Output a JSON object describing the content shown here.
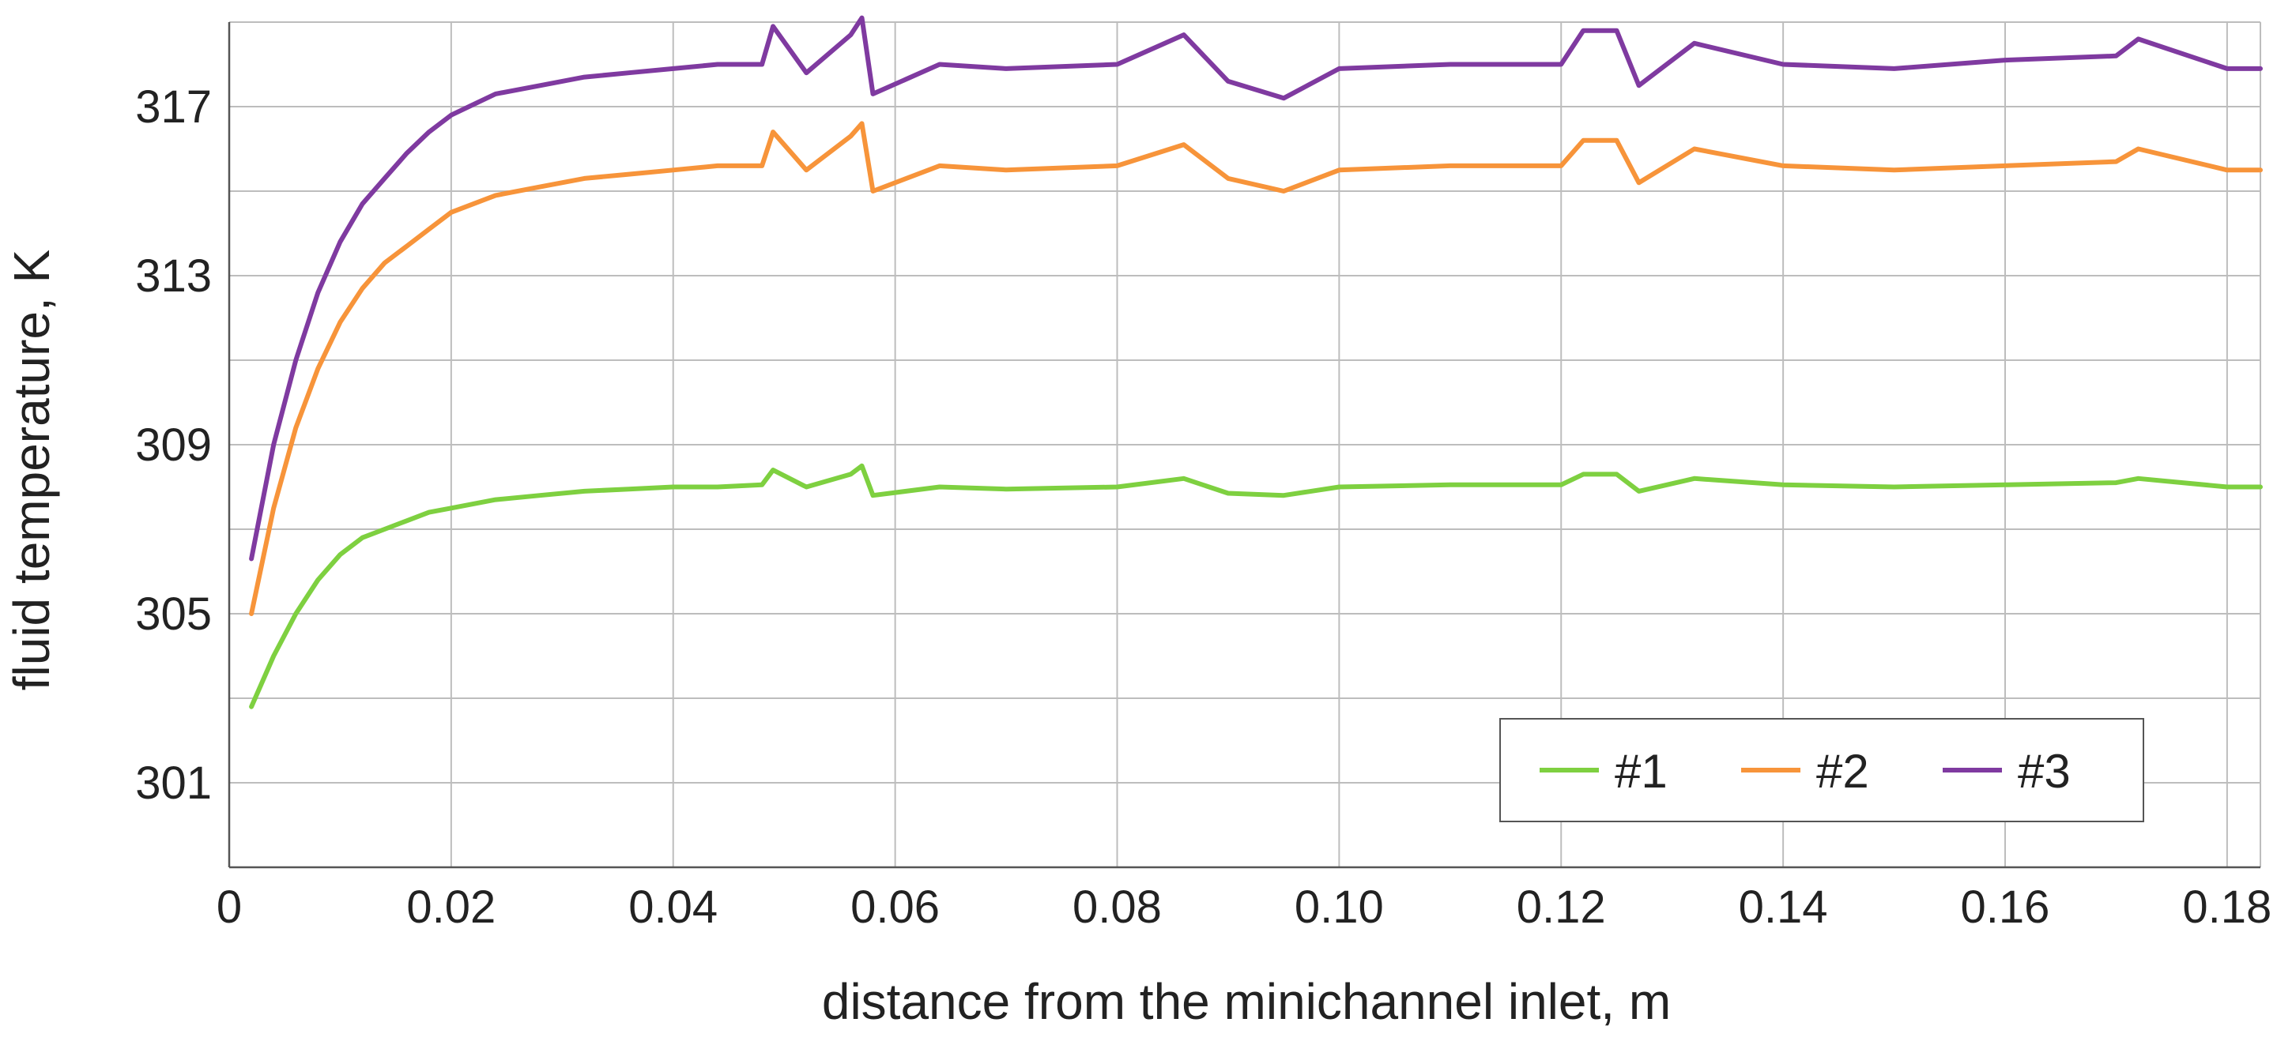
{
  "chart_data": {
    "type": "line",
    "title": "",
    "xlabel": "distance from the minichannel inlet, m",
    "ylabel": "fluid temperature, K",
    "xlim": [
      0,
      0.183
    ],
    "ylim": [
      299,
      319
    ],
    "x_ticks": [
      0,
      0.02,
      0.04,
      0.06,
      0.08,
      0.1,
      0.12,
      0.14,
      0.16,
      0.18
    ],
    "x_tick_labels": [
      "0",
      "0.02",
      "0.04",
      "0.06",
      "0.08",
      "0.10",
      "0.12",
      "0.14",
      "0.16",
      "0.18"
    ],
    "y_ticks": [
      301,
      305,
      309,
      313,
      317
    ],
    "y_tick_labels": [
      "301",
      "305",
      "309",
      "313",
      "317"
    ],
    "y_minor_gridlines": [
      303,
      307,
      311,
      315
    ],
    "grid": true,
    "legend_position": "bottom-right",
    "series": [
      {
        "name": "#1",
        "color": "#7ed040",
        "x": [
          0.002,
          0.004,
          0.006,
          0.008,
          0.01,
          0.012,
          0.014,
          0.016,
          0.018,
          0.02,
          0.024,
          0.028,
          0.032,
          0.036,
          0.04,
          0.044,
          0.048,
          0.049,
          0.052,
          0.056,
          0.057,
          0.058,
          0.064,
          0.07,
          0.08,
          0.086,
          0.09,
          0.095,
          0.1,
          0.11,
          0.12,
          0.122,
          0.125,
          0.127,
          0.132,
          0.14,
          0.15,
          0.16,
          0.17,
          0.172,
          0.18,
          0.183
        ],
        "y": [
          302.8,
          304.0,
          305.0,
          305.8,
          306.4,
          306.8,
          307.0,
          307.2,
          307.4,
          307.5,
          307.7,
          307.8,
          307.9,
          307.95,
          308.0,
          308.0,
          308.05,
          308.4,
          308.0,
          308.3,
          308.5,
          307.8,
          308.0,
          307.95,
          308.0,
          308.2,
          307.85,
          307.8,
          308.0,
          308.05,
          308.05,
          308.3,
          308.3,
          307.9,
          308.2,
          308.05,
          308.0,
          308.05,
          308.1,
          308.2,
          308.0,
          308.0
        ]
      },
      {
        "name": "#2",
        "color": "#f7943a",
        "x": [
          0.002,
          0.004,
          0.006,
          0.008,
          0.01,
          0.012,
          0.014,
          0.016,
          0.018,
          0.02,
          0.024,
          0.028,
          0.032,
          0.036,
          0.04,
          0.044,
          0.048,
          0.049,
          0.052,
          0.056,
          0.057,
          0.058,
          0.064,
          0.07,
          0.08,
          0.086,
          0.09,
          0.095,
          0.1,
          0.11,
          0.12,
          0.122,
          0.125,
          0.127,
          0.132,
          0.14,
          0.15,
          0.16,
          0.17,
          0.172,
          0.18,
          0.183
        ],
        "y": [
          305.0,
          307.5,
          309.4,
          310.8,
          311.9,
          312.7,
          313.3,
          313.7,
          314.1,
          314.5,
          314.9,
          315.1,
          315.3,
          315.4,
          315.5,
          315.6,
          315.6,
          316.4,
          315.5,
          316.3,
          316.6,
          315.0,
          315.6,
          315.5,
          315.6,
          316.1,
          315.3,
          315.0,
          315.5,
          315.6,
          315.6,
          316.2,
          316.2,
          315.2,
          316.0,
          315.6,
          315.5,
          315.6,
          315.7,
          316.0,
          315.5,
          315.5
        ]
      },
      {
        "name": "#3",
        "color": "#7f3aa0",
        "x": [
          0.002,
          0.004,
          0.006,
          0.008,
          0.01,
          0.012,
          0.014,
          0.016,
          0.018,
          0.02,
          0.024,
          0.028,
          0.032,
          0.036,
          0.04,
          0.044,
          0.048,
          0.049,
          0.052,
          0.056,
          0.057,
          0.058,
          0.064,
          0.07,
          0.08,
          0.086,
          0.09,
          0.095,
          0.1,
          0.11,
          0.12,
          0.122,
          0.125,
          0.127,
          0.132,
          0.14,
          0.15,
          0.16,
          0.17,
          0.172,
          0.18,
          0.183
        ],
        "y": [
          306.3,
          309.0,
          311.0,
          312.6,
          313.8,
          314.7,
          315.3,
          315.9,
          316.4,
          316.8,
          317.3,
          317.5,
          317.7,
          317.8,
          317.9,
          318.0,
          318.0,
          318.9,
          317.8,
          318.7,
          319.1,
          317.3,
          318.0,
          317.9,
          318.0,
          318.7,
          317.6,
          317.2,
          317.9,
          318.0,
          318.0,
          318.8,
          318.8,
          317.5,
          318.5,
          318.0,
          317.9,
          318.1,
          318.2,
          318.6,
          317.9,
          317.9
        ]
      }
    ]
  }
}
